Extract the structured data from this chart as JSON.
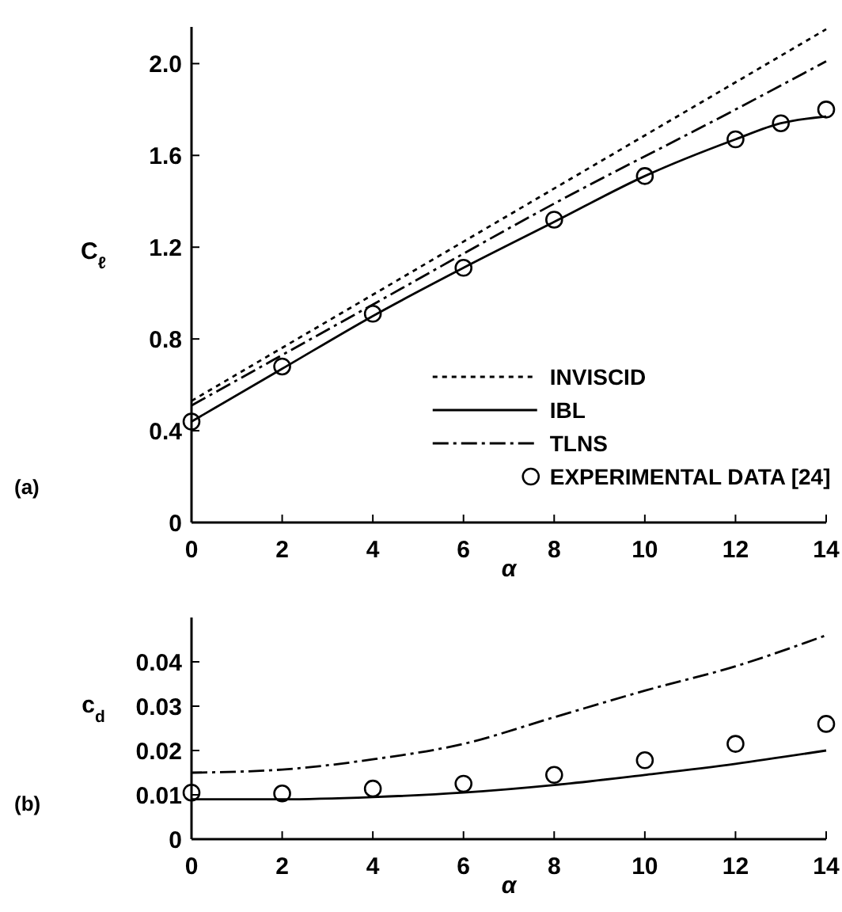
{
  "chart_data": [
    {
      "type": "line",
      "xlabel": "α",
      "ylabel": "C$_{ℓ}$",
      "annotations": [
        "(a)"
      ],
      "xlim": [
        0,
        14
      ],
      "ylim": [
        0,
        2.16
      ],
      "xticks": [
        0,
        2,
        4,
        6,
        8,
        10,
        12,
        14
      ],
      "yticks": [
        0,
        0.4,
        0.8,
        1.2,
        1.6,
        {
          "value": 2,
          "label": "2.0"
        }
      ],
      "grid": false,
      "legend": "bottom right",
      "series": [
        {
          "name": "INVISCID",
          "color": "#000000",
          "line_style": "dotted",
          "x": [
            0,
            14
          ],
          "values": [
            0.53,
            2.15
          ]
        },
        {
          "name": "IBL",
          "color": "#000000",
          "line_style": "solid",
          "x": [
            0,
            2,
            4,
            6,
            8,
            10,
            12,
            13,
            14
          ],
          "values": [
            0.44,
            0.67,
            0.9,
            1.11,
            1.31,
            1.51,
            1.67,
            1.74,
            1.77
          ]
        },
        {
          "name": "TLNS",
          "color": "#000000",
          "line_style": "dashdot",
          "x": [
            0,
            4,
            8,
            12,
            14
          ],
          "values": [
            0.51,
            0.95,
            1.39,
            1.8,
            2.01
          ]
        },
        {
          "name": "EXPERIMENTAL DATA [24]",
          "type": "scatter",
          "marker": "circle",
          "color": "#000000",
          "x": [
            0,
            2,
            4,
            6,
            8,
            10,
            12,
            13,
            14
          ],
          "values": [
            0.44,
            0.68,
            0.91,
            1.11,
            1.32,
            1.51,
            1.67,
            1.74,
            1.8
          ]
        }
      ]
    },
    {
      "type": "line",
      "xlabel": "α",
      "ylabel": "c$_{d}$",
      "annotations": [
        "(b)"
      ],
      "xlim": [
        0,
        14
      ],
      "ylim": [
        0,
        0.05
      ],
      "xticks": [
        0,
        2,
        4,
        6,
        8,
        10,
        12,
        14
      ],
      "yticks": [
        0,
        0.01,
        0.02,
        0.03,
        0.04
      ],
      "grid": false,
      "legend": false,
      "series": [
        {
          "color": "#000000",
          "line_style": "solid",
          "x": [
            0,
            2,
            4,
            6,
            8,
            10,
            12,
            14
          ],
          "values": [
            0.009,
            0.009,
            0.0095,
            0.0105,
            0.0122,
            0.0145,
            0.017,
            0.02
          ]
        },
        {
          "color": "#000000",
          "line_style": "dashdot",
          "x": [
            0,
            2,
            4,
            6,
            8,
            10,
            12,
            14
          ],
          "values": [
            0.015,
            0.0157,
            0.018,
            0.0215,
            0.0275,
            0.0335,
            0.039,
            0.046
          ]
        },
        {
          "type": "scatter",
          "marker": "circle",
          "color": "#000000",
          "x": [
            0,
            2,
            4,
            6,
            8,
            10,
            12,
            14
          ],
          "values": [
            0.0105,
            0.0103,
            0.0114,
            0.0125,
            0.0145,
            0.0178,
            0.0215,
            0.026
          ]
        }
      ]
    }
  ]
}
